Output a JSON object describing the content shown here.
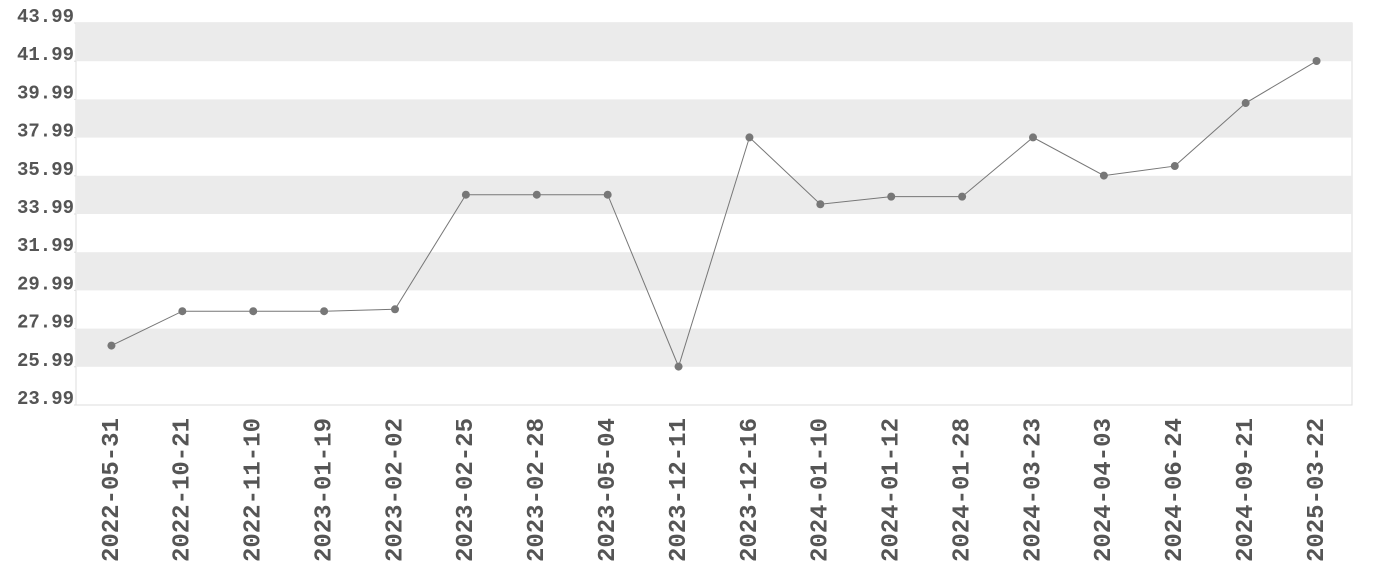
{
  "chart_data": {
    "type": "line",
    "categories": [
      "2022-05-31",
      "2022-10-21",
      "2022-11-10",
      "2023-01-19",
      "2023-02-02",
      "2023-02-25",
      "2023-02-28",
      "2023-05-04",
      "2023-12-11",
      "2023-12-16",
      "2024-01-10",
      "2024-01-12",
      "2024-01-28",
      "2024-03-23",
      "2024-04-03",
      "2024-06-24",
      "2024-09-21",
      "2025-03-22"
    ],
    "values": [
      27.1,
      28.9,
      28.9,
      28.9,
      29.0,
      35.0,
      35.0,
      35.0,
      26.0,
      38.0,
      34.5,
      34.9,
      34.9,
      38.0,
      36.0,
      36.5,
      39.8,
      42.0
    ],
    "color": "#777777",
    "ylim": [
      23.99,
      43.99
    ],
    "yticks": [
      23.99,
      25.99,
      27.99,
      29.99,
      31.99,
      33.99,
      35.99,
      37.99,
      39.99,
      41.99,
      43.99
    ],
    "band_color": "#ebebeb"
  }
}
